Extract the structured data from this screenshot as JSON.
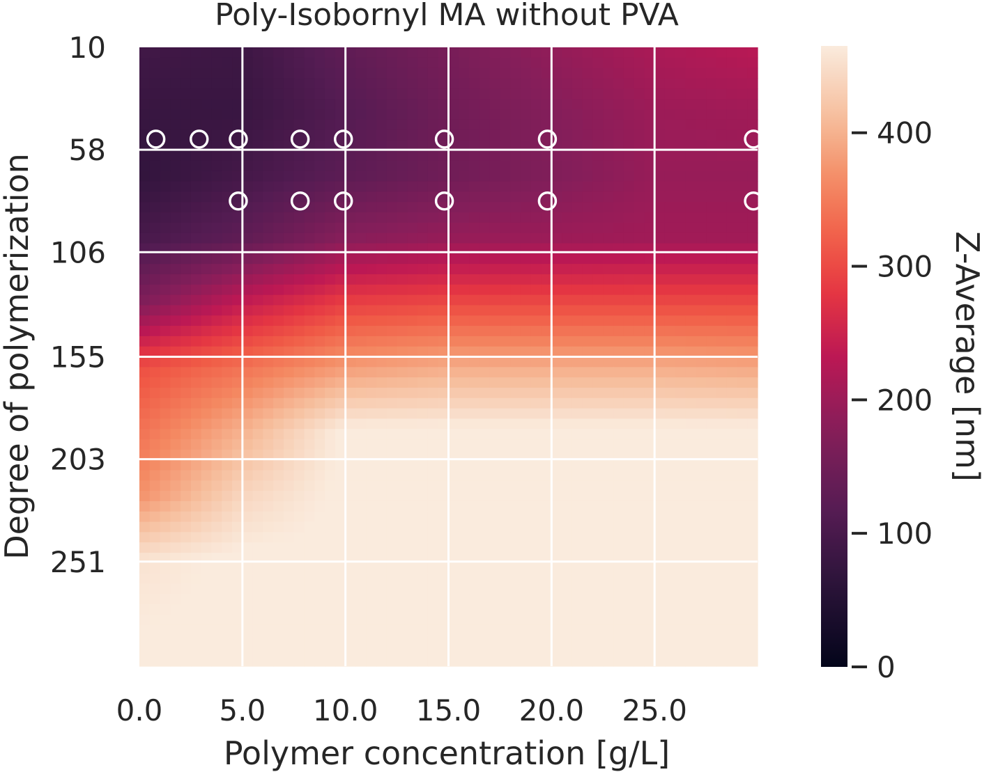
{
  "chart_data": {
    "type": "heatmap",
    "title": "Poly-Isobornyl MA without PVA",
    "xlabel": "Polymer concentration [g/L]",
    "ylabel": "Degree of polymerization",
    "colorbar_label": "Z-Average [nm]",
    "x_range": [
      0,
      30
    ],
    "y_range": [
      10,
      300
    ],
    "x_ticks": [
      0,
      5,
      10,
      15,
      20,
      25
    ],
    "x_tick_labels": [
      "0.0",
      "5.0",
      "10.0",
      "15.0",
      "20.0",
      "25.0"
    ],
    "y_ticks": [
      10,
      58,
      106,
      155,
      203,
      251
    ],
    "y_tick_labels": [
      "10",
      "58",
      "106",
      "155",
      "203",
      "251"
    ],
    "color_range": [
      0,
      465
    ],
    "colorbar_ticks": [
      0,
      100,
      200,
      300,
      400
    ],
    "colorbar_tick_labels": [
      "0",
      "100",
      "200",
      "300",
      "400"
    ],
    "colormap": "rocket",
    "grid": true,
    "x_grid": [
      5,
      10,
      15,
      20,
      25
    ],
    "y_grid": [
      58,
      106,
      155,
      203,
      251
    ],
    "samples": [
      {
        "x": 0.8,
        "y": 53
      },
      {
        "x": 2.9,
        "y": 53
      },
      {
        "x": 4.8,
        "y": 53
      },
      {
        "x": 7.8,
        "y": 53
      },
      {
        "x": 9.9,
        "y": 53
      },
      {
        "x": 14.8,
        "y": 53
      },
      {
        "x": 19.8,
        "y": 53
      },
      {
        "x": 29.8,
        "y": 53
      },
      {
        "x": 4.8,
        "y": 82
      },
      {
        "x": 7.8,
        "y": 82
      },
      {
        "x": 9.9,
        "y": 82
      },
      {
        "x": 14.8,
        "y": 82
      },
      {
        "x": 19.8,
        "y": 82
      },
      {
        "x": 29.8,
        "y": 82
      }
    ],
    "z_grid": {
      "x": [
        0,
        5,
        10,
        15,
        20,
        25,
        30
      ],
      "y": [
        10,
        40,
        70,
        100,
        130,
        160,
        190,
        220,
        250,
        300
      ],
      "z": [
        [
          90,
          85,
          130,
          160,
          190,
          215,
          230
        ],
        [
          78,
          80,
          115,
          150,
          175,
          200,
          205
        ],
        [
          70,
          95,
          125,
          150,
          170,
          195,
          195
        ],
        [
          100,
          130,
          180,
          195,
          200,
          205,
          205
        ],
        [
          170,
          240,
          290,
          300,
          300,
          300,
          300
        ],
        [
          305,
          340,
          380,
          395,
          395,
          395,
          390
        ],
        [
          340,
          400,
          470,
          470,
          470,
          470,
          470
        ],
        [
          370,
          440,
          470,
          470,
          470,
          470,
          470
        ],
        [
          455,
          470,
          470,
          470,
          470,
          470,
          470
        ],
        [
          470,
          470,
          470,
          470,
          470,
          470,
          470
        ]
      ]
    }
  }
}
